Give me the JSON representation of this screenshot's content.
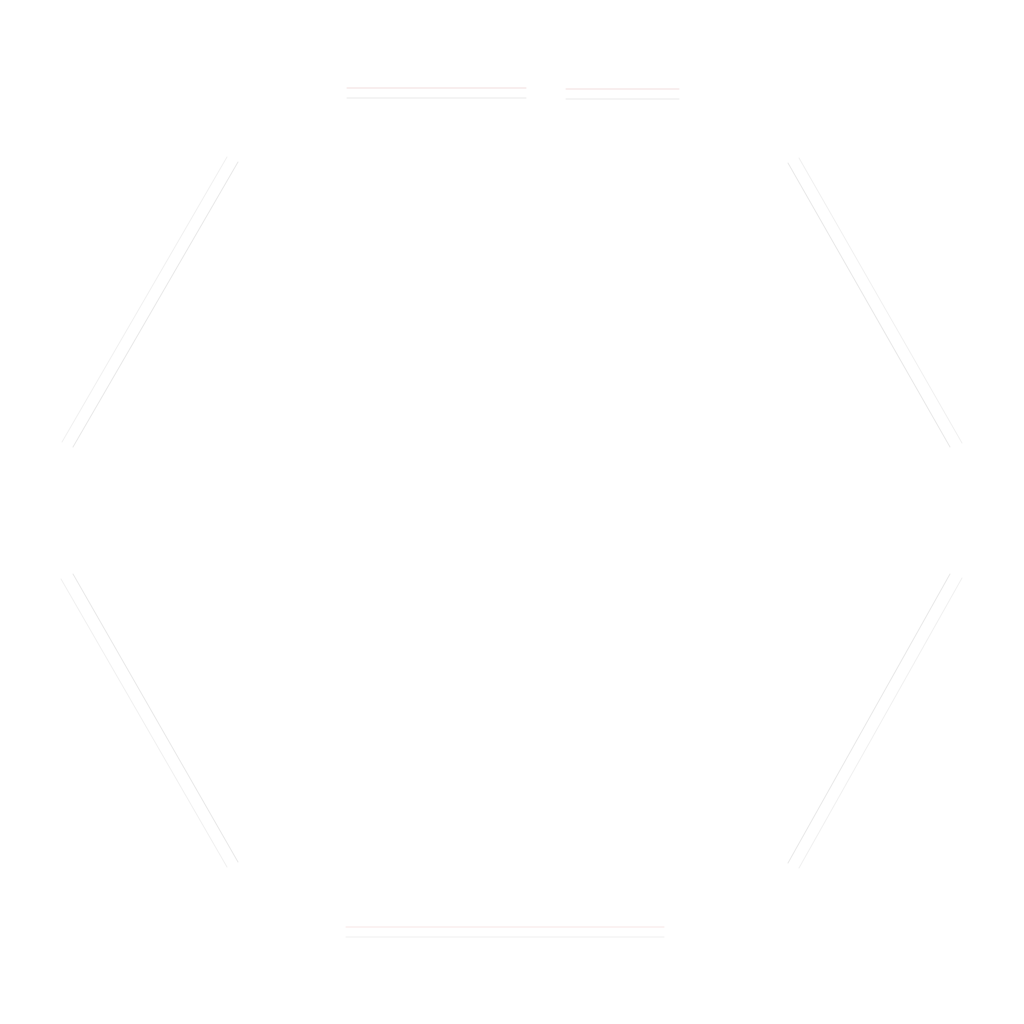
{
  "graphic": {
    "shape": "hexagon-outline",
    "style": "double thin strokes per side, corners open",
    "sides": [
      {
        "name": "top",
        "color_outer": "#f0dede",
        "color_inner": "#eaeaea"
      },
      {
        "name": "upper-right",
        "color_outer": "#f0f0f0",
        "color_inner": "#e8e8e8"
      },
      {
        "name": "lower-right",
        "color_outer": "#f0f0f0",
        "color_inner": "#e8e8e8"
      },
      {
        "name": "bottom",
        "color_outer": "#f7e4e4",
        "color_inner": "#efefef"
      },
      {
        "name": "lower-left",
        "color_outer": "#f0f0f0",
        "color_inner": "#e8e8e8"
      },
      {
        "name": "upper-left",
        "color_outer": "#f0f0f0",
        "color_inner": "#e8e8e8"
      }
    ],
    "background": "#ffffff"
  }
}
